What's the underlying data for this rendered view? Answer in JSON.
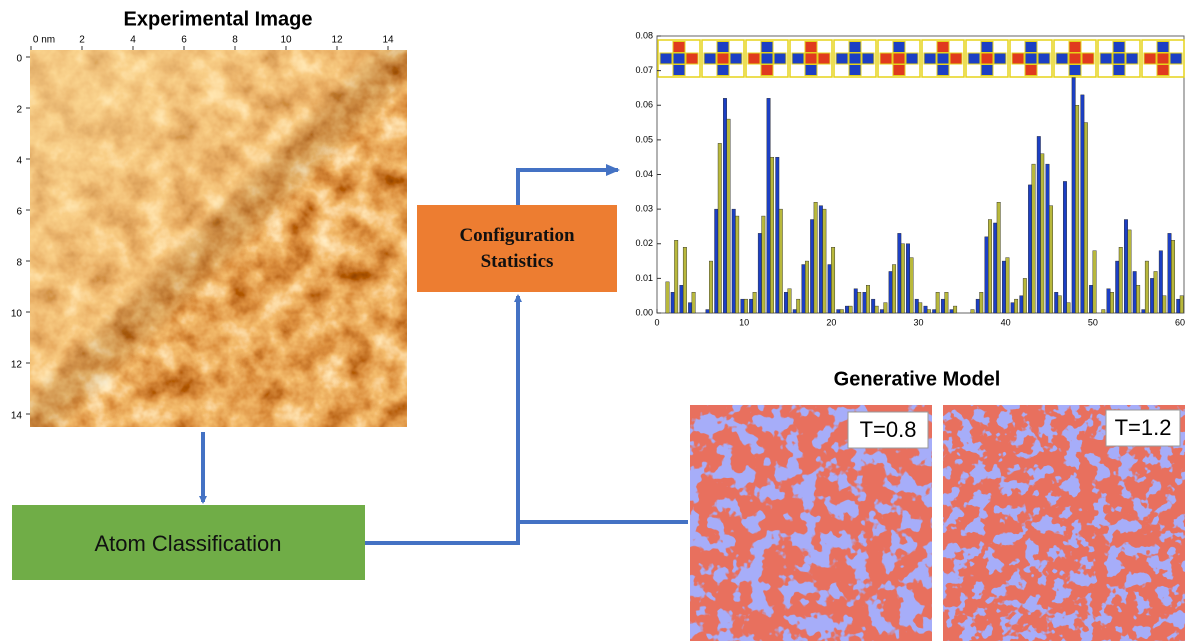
{
  "experimental_image": {
    "title": "Experimental Image",
    "xticks": [
      {
        "value": 0,
        "label": "0 nm"
      },
      2,
      4,
      6,
      8,
      10,
      12,
      14
    ],
    "yticks": [
      0,
      2,
      4,
      6,
      8,
      10,
      12,
      14
    ],
    "xlim": [
      0,
      14.8
    ],
    "ylim": [
      0,
      14.8
    ]
  },
  "flow": {
    "atom_classification": "Atom Classification",
    "configuration_statistics": "Configuration Statistics"
  },
  "histogram": {
    "type": "bar",
    "x": [
      1,
      2,
      3,
      4,
      5,
      6,
      7,
      8,
      9,
      10,
      11,
      12,
      13,
      14,
      15,
      16,
      17,
      18,
      19,
      20,
      21,
      22,
      23,
      24,
      25,
      26,
      27,
      28,
      29,
      30,
      31,
      32,
      33,
      34,
      35,
      36,
      37,
      38,
      39,
      40,
      41,
      42,
      43,
      44,
      45,
      46,
      47,
      48,
      49,
      50,
      51,
      52,
      53,
      54,
      55,
      56,
      57,
      58,
      59,
      60
    ],
    "series": [
      {
        "color": "#1c3fc4",
        "values": [
          0.0,
          0.006,
          0.008,
          0.003,
          0.0,
          0.001,
          0.03,
          0.062,
          0.03,
          0.004,
          0.004,
          0.023,
          0.062,
          0.045,
          0.006,
          0.001,
          0.014,
          0.027,
          0.031,
          0.014,
          0.001,
          0.002,
          0.007,
          0.006,
          0.004,
          0.001,
          0.012,
          0.023,
          0.02,
          0.004,
          0.002,
          0.001,
          0.004,
          0.001,
          0.0,
          0.0,
          0.004,
          0.022,
          0.026,
          0.015,
          0.003,
          0.005,
          0.037,
          0.051,
          0.043,
          0.006,
          0.038,
          0.068,
          0.063,
          0.008,
          0.0,
          0.007,
          0.015,
          0.027,
          0.012,
          0.001,
          0.01,
          0.018,
          0.023,
          0.004
        ]
      },
      {
        "color": "#b8b83c",
        "values": [
          0.009,
          0.021,
          0.019,
          0.006,
          0.0,
          0.015,
          0.049,
          0.056,
          0.028,
          0.004,
          0.006,
          0.028,
          0.045,
          0.03,
          0.007,
          0.004,
          0.015,
          0.032,
          0.03,
          0.019,
          0.001,
          0.002,
          0.006,
          0.008,
          0.002,
          0.003,
          0.014,
          0.02,
          0.016,
          0.003,
          0.001,
          0.006,
          0.006,
          0.002,
          0.0,
          0.001,
          0.006,
          0.027,
          0.032,
          0.016,
          0.004,
          0.01,
          0.043,
          0.046,
          0.031,
          0.005,
          0.003,
          0.06,
          0.055,
          0.018,
          0.001,
          0.006,
          0.019,
          0.024,
          0.008,
          0.015,
          0.012,
          0.005,
          0.021,
          0.005
        ]
      }
    ],
    "xlim": [
      0,
      60
    ],
    "ylim": [
      0,
      0.08
    ],
    "xticks": [
      0,
      10,
      20,
      30,
      40,
      50,
      60
    ],
    "yticks": [
      {
        "value": 0,
        "label": "0.00"
      },
      0.01,
      0.02,
      0.03,
      0.04,
      0.05,
      0.06,
      0.07,
      0.08
    ]
  },
  "generative_model": {
    "title": "Generative Model",
    "panels": [
      {
        "label": "T=0.8"
      },
      {
        "label": "T=1.2"
      }
    ]
  }
}
